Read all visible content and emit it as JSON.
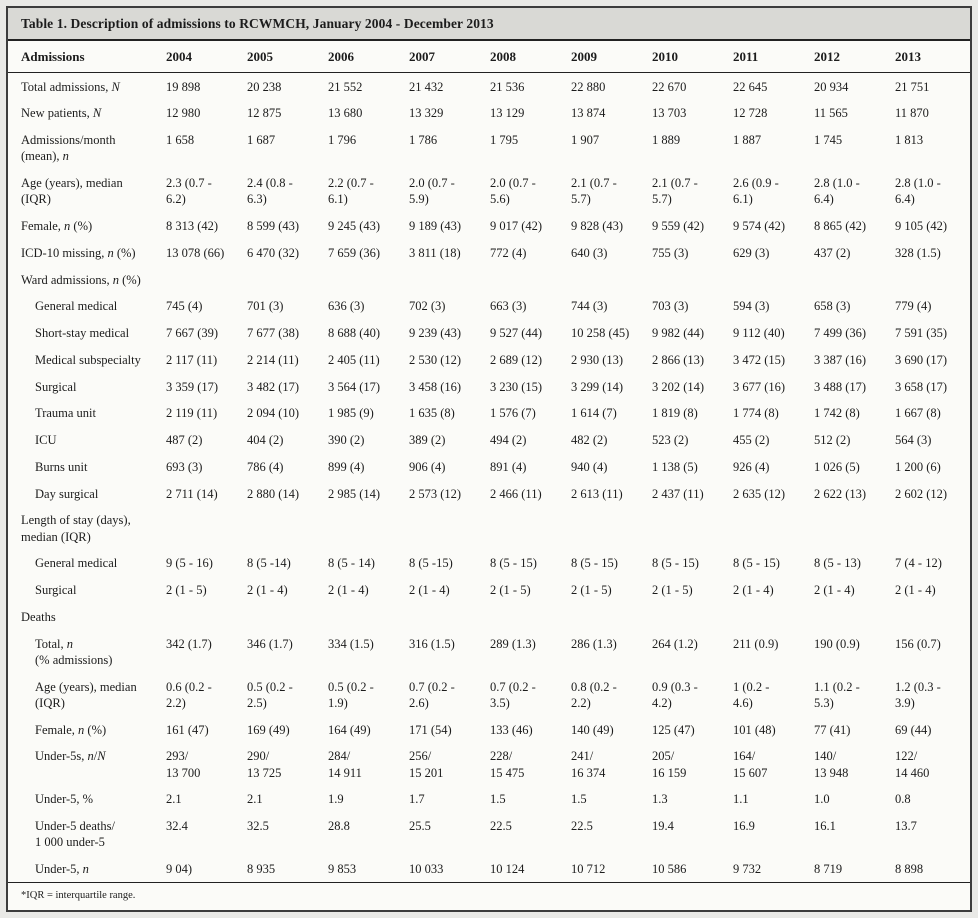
{
  "colors": {
    "title_band_bg": "#d9d9d5",
    "rule": "#222222"
  },
  "table": {
    "title": "Table 1. Description of admissions to RCWMCH, January 2004 - December 2013",
    "footnote": "*IQR = interquartile range.",
    "columns": [
      "Admissions",
      "2004",
      "2005",
      "2006",
      "2007",
      "2008",
      "2009",
      "2010",
      "2011",
      "2012",
      "2013"
    ],
    "rows": [
      {
        "indent": 0,
        "section": false,
        "label": [
          {
            "text": "Total admissions, "
          },
          {
            "text": "N",
            "italic": true
          }
        ],
        "values": [
          "19 898",
          "20 238",
          "21 552",
          "21 432",
          "21 536",
          "22 880",
          "22 670",
          "22 645",
          "20 934",
          "21 751"
        ]
      },
      {
        "indent": 0,
        "section": false,
        "label": [
          {
            "text": "New patients, "
          },
          {
            "text": "N",
            "italic": true
          }
        ],
        "values": [
          "12 980",
          "12 875",
          "13 680",
          "13 329",
          "13 129",
          "13 874",
          "13 703",
          "12 728",
          "11 565",
          "11 870"
        ]
      },
      {
        "indent": 0,
        "section": false,
        "label": [
          {
            "text": "Admissions/month\n(mean), "
          },
          {
            "text": "n",
            "italic": true
          }
        ],
        "values": [
          "1 658",
          "1 687",
          "1 796",
          "1 786",
          "1 795",
          "1 907",
          "1 889",
          "1 887",
          "1 745",
          "1 813"
        ]
      },
      {
        "indent": 0,
        "section": false,
        "label": [
          {
            "text": "Age (years), median (IQR)"
          }
        ],
        "values": [
          "2.3 (0.7 -\n6.2)",
          "2.4 (0.8 -\n6.3)",
          "2.2 (0.7 -\n6.1)",
          "2.0 (0.7 -\n5.9)",
          "2.0 (0.7 -\n5.6)",
          "2.1 (0.7 -\n5.7)",
          "2.1 (0.7 -\n5.7)",
          "2.6 (0.9 -\n6.1)",
          "2.8 (1.0 -\n6.4)",
          "2.8 (1.0 -\n6.4)"
        ]
      },
      {
        "indent": 0,
        "section": false,
        "label": [
          {
            "text": "Female, "
          },
          {
            "text": "n",
            "italic": true
          },
          {
            "text": " (%)"
          }
        ],
        "values": [
          "8 313 (42)",
          "8 599 (43)",
          "9 245 (43)",
          "9 189 (43)",
          "9 017 (42)",
          "9 828 (43)",
          "9 559 (42)",
          "9 574 (42)",
          "8 865 (42)",
          "9 105 (42)"
        ]
      },
      {
        "indent": 0,
        "section": false,
        "label": [
          {
            "text": "ICD-10 missing, "
          },
          {
            "text": "n",
            "italic": true
          },
          {
            "text": " (%)"
          }
        ],
        "values": [
          "13 078 (66)",
          "6 470 (32)",
          "7 659 (36)",
          "3 811 (18)",
          "772 (4)",
          "640 (3)",
          "755 (3)",
          "629 (3)",
          "437 (2)",
          "328 (1.5)"
        ]
      },
      {
        "indent": 0,
        "section": true,
        "label": [
          {
            "text": "Ward admissions, "
          },
          {
            "text": "n",
            "italic": true
          },
          {
            "text": " (%)"
          }
        ],
        "values": []
      },
      {
        "indent": 1,
        "section": false,
        "label": [
          {
            "text": "General medical"
          }
        ],
        "values": [
          "745 (4)",
          "701 (3)",
          "636 (3)",
          "702 (3)",
          "663 (3)",
          "744 (3)",
          "703 (3)",
          "594 (3)",
          "658 (3)",
          "779 (4)"
        ]
      },
      {
        "indent": 1,
        "section": false,
        "label": [
          {
            "text": "Short-stay medical"
          }
        ],
        "values": [
          "7 667 (39)",
          "7 677 (38)",
          "8 688 (40)",
          "9 239 (43)",
          "9 527 (44)",
          "10 258 (45)",
          "9 982 (44)",
          "9 112 (40)",
          "7 499 (36)",
          "7 591 (35)"
        ]
      },
      {
        "indent": 1,
        "section": false,
        "label": [
          {
            "text": "Medical subspecialty"
          }
        ],
        "values": [
          "2 117 (11)",
          "2 214 (11)",
          "2 405 (11)",
          "2 530 (12)",
          "2 689 (12)",
          "2 930 (13)",
          "2 866 (13)",
          "3 472 (15)",
          "3 387 (16)",
          "3 690 (17)"
        ]
      },
      {
        "indent": 1,
        "section": false,
        "label": [
          {
            "text": "Surgical"
          }
        ],
        "values": [
          "3 359 (17)",
          "3 482 (17)",
          "3 564 (17)",
          "3 458 (16)",
          "3 230 (15)",
          "3 299 (14)",
          "3 202 (14)",
          "3 677 (16)",
          "3 488 (17)",
          "3 658 (17)"
        ]
      },
      {
        "indent": 1,
        "section": false,
        "label": [
          {
            "text": "Trauma unit"
          }
        ],
        "values": [
          "2 119 (11)",
          "2 094 (10)",
          "1 985 (9)",
          "1 635 (8)",
          "1 576 (7)",
          "1 614 (7)",
          "1 819 (8)",
          "1 774 (8)",
          "1 742 (8)",
          "1 667 (8)"
        ]
      },
      {
        "indent": 1,
        "section": false,
        "label": [
          {
            "text": "ICU"
          }
        ],
        "values": [
          "487 (2)",
          "404 (2)",
          "390 (2)",
          "389 (2)",
          "494 (2)",
          "482 (2)",
          "523 (2)",
          "455 (2)",
          "512 (2)",
          "564 (3)"
        ]
      },
      {
        "indent": 1,
        "section": false,
        "label": [
          {
            "text": "Burns unit"
          }
        ],
        "values": [
          "693 (3)",
          "786 (4)",
          "899 (4)",
          "906 (4)",
          "891 (4)",
          "940 (4)",
          "1 138 (5)",
          "926 (4)",
          "1 026 (5)",
          "1 200 (6)"
        ]
      },
      {
        "indent": 1,
        "section": false,
        "label": [
          {
            "text": "Day surgical"
          }
        ],
        "values": [
          "2 711 (14)",
          "2 880 (14)",
          "2 985 (14)",
          "2 573 (12)",
          "2 466 (11)",
          "2 613 (11)",
          "2 437 (11)",
          "2 635 (12)",
          "2 622 (13)",
          "2 602 (12)"
        ]
      },
      {
        "indent": 0,
        "section": true,
        "label": [
          {
            "text": "Length of stay (days),\nmedian (IQR)"
          }
        ],
        "values": []
      },
      {
        "indent": 1,
        "section": false,
        "label": [
          {
            "text": "General medical"
          }
        ],
        "values": [
          "9 (5 - 16)",
          "8 (5 -14)",
          "8 (5 - 14)",
          "8 (5 -15)",
          "8 (5 - 15)",
          "8 (5 - 15)",
          "8 (5 - 15)",
          "8 (5 - 15)",
          "8 (5 - 13)",
          "7 (4 - 12)"
        ]
      },
      {
        "indent": 1,
        "section": false,
        "label": [
          {
            "text": "Surgical"
          }
        ],
        "values": [
          "2 (1 - 5)",
          "2 (1 - 4)",
          "2 (1 - 4)",
          "2 (1 - 4)",
          "2 (1 - 5)",
          "2 (1 - 5)",
          "2 (1 - 5)",
          "2 (1 - 4)",
          "2 (1 - 4)",
          "2 (1 - 4)"
        ]
      },
      {
        "indent": 0,
        "section": true,
        "label": [
          {
            "text": "Deaths"
          }
        ],
        "values": []
      },
      {
        "indent": 1,
        "section": false,
        "label": [
          {
            "text": "Total, "
          },
          {
            "text": "n",
            "italic": true
          },
          {
            "text": "\n(% admissions)"
          }
        ],
        "values": [
          "342 (1.7)",
          "346 (1.7)",
          "334 (1.5)",
          "316 (1.5)",
          "289 (1.3)",
          "286 (1.3)",
          "264 (1.2)",
          "211 (0.9)",
          "190 (0.9)",
          "156 (0.7)"
        ]
      },
      {
        "indent": 1,
        "section": false,
        "label": [
          {
            "text": "Age (years), median\n(IQR)"
          }
        ],
        "values": [
          "0.6 (0.2 -\n2.2)",
          "0.5 (0.2 -\n2.5)",
          "0.5 (0.2 -\n1.9)",
          "0.7 (0.2 -\n2.6)",
          "0.7 (0.2 -\n3.5)",
          "0.8 (0.2 -\n2.2)",
          "0.9 (0.3 -\n4.2)",
          "1 (0.2 -\n4.6)",
          "1.1 (0.2 -\n5.3)",
          "1.2 (0.3 -\n3.9)"
        ]
      },
      {
        "indent": 1,
        "section": false,
        "label": [
          {
            "text": "Female, "
          },
          {
            "text": "n",
            "italic": true
          },
          {
            "text": " (%)"
          }
        ],
        "values": [
          "161 (47)",
          "169 (49)",
          "164 (49)",
          "171 (54)",
          "133 (46)",
          "140 (49)",
          "125 (47)",
          "101 (48)",
          "77 (41)",
          "69 (44)"
        ]
      },
      {
        "indent": 1,
        "section": false,
        "label": [
          {
            "text": "Under-5s, "
          },
          {
            "text": "n",
            "italic": true
          },
          {
            "text": "/"
          },
          {
            "text": "N",
            "italic": true
          }
        ],
        "values": [
          "293/\n13 700",
          "290/\n13 725",
          "284/\n14 911",
          "256/\n15 201",
          "228/\n15 475",
          "241/\n16 374",
          "205/\n16 159",
          "164/\n15 607",
          "140/\n13 948",
          "122/\n14 460"
        ]
      },
      {
        "indent": 1,
        "section": false,
        "label": [
          {
            "text": "Under-5, %"
          }
        ],
        "values": [
          "2.1",
          "2.1",
          "1.9",
          "1.7",
          "1.5",
          "1.5",
          "1.3",
          "1.1",
          "1.0",
          "0.8"
        ]
      },
      {
        "indent": 1,
        "section": false,
        "label": [
          {
            "text": "Under-5 deaths/\n1 000 under-5"
          }
        ],
        "values": [
          "32.4",
          "32.5",
          "28.8",
          "25.5",
          "22.5",
          "22.5",
          "19.4",
          "16.9",
          "16.1",
          "13.7"
        ]
      },
      {
        "indent": 1,
        "section": false,
        "label": [
          {
            "text": "Under-5, "
          },
          {
            "text": "n",
            "italic": true
          }
        ],
        "values": [
          "9 04)",
          "8 935",
          "9 853",
          "10 033",
          "10 124",
          "10 712",
          "10 586",
          "9 732",
          "8 719",
          "8 898"
        ]
      }
    ]
  }
}
